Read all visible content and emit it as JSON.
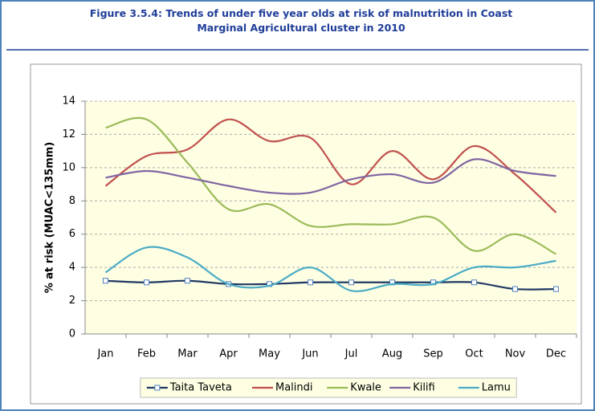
{
  "chart_data": {
    "type": "line",
    "title": "Figure 3.5.4: Trends of under five year olds at risk of malnutrition in Coast",
    "subtitle": "Marginal Agricultural cluster in 2010",
    "y_label": "% at risk (MUAC<135mm)",
    "categories": [
      "Jan",
      "Feb",
      "Mar",
      "Apr",
      "May",
      "Jun",
      "Jul",
      "Aug",
      "Sep",
      "Oct",
      "Nov",
      "Dec"
    ],
    "series": [
      {
        "name": "Taita Taveta",
        "color": "#1f3864",
        "marker": "square",
        "values": [
          3.2,
          3.1,
          3.2,
          3.0,
          3.0,
          3.1,
          3.1,
          3.1,
          3.1,
          3.1,
          2.7,
          2.7
        ]
      },
      {
        "name": "Malindi",
        "color": "#c0504d",
        "values": [
          8.9,
          10.7,
          11.1,
          12.9,
          11.6,
          11.8,
          9.0,
          11.0,
          9.3,
          11.3,
          9.6,
          7.3
        ]
      },
      {
        "name": "Kwale",
        "color": "#9bbb59",
        "values": [
          12.4,
          12.9,
          10.3,
          7.5,
          7.8,
          6.5,
          6.6,
          6.6,
          7.0,
          5.0,
          6.0,
          4.8
        ]
      },
      {
        "name": "Kilifi",
        "color": "#8064a2",
        "values": [
          9.4,
          9.8,
          9.4,
          8.9,
          8.5,
          8.5,
          9.3,
          9.6,
          9.1,
          10.5,
          9.8,
          9.5
        ]
      },
      {
        "name": "Lamu",
        "color": "#4bacc6",
        "values": [
          3.7,
          5.2,
          4.6,
          3.0,
          2.9,
          4.0,
          2.6,
          3.0,
          3.0,
          4.0,
          4.0,
          4.4
        ]
      }
    ],
    "ylim": [
      0,
      14
    ],
    "yticks": [
      0,
      2,
      4,
      6,
      8,
      10,
      12,
      14
    ],
    "grid": true,
    "smooth": true,
    "legend": "bottom"
  }
}
